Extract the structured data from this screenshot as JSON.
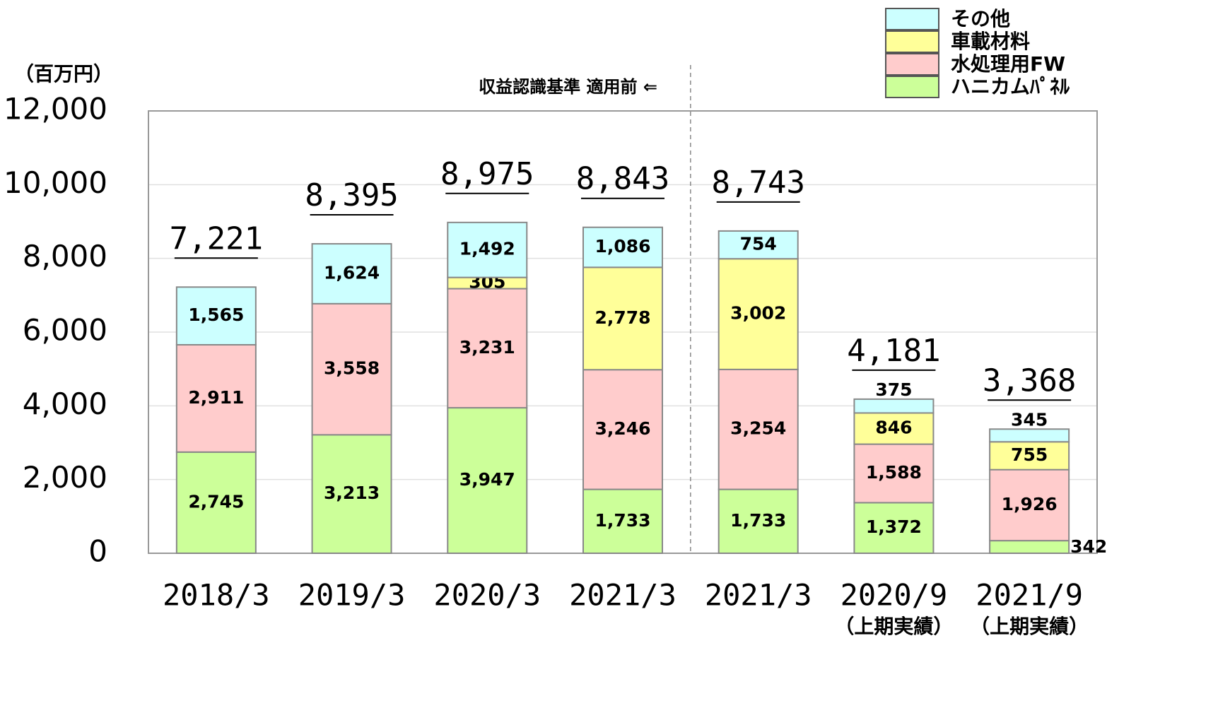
{
  "chart_data": {
    "type": "stacked_bar",
    "y_axis_label": "（百万円）",
    "annotation": "収益認識基準 適用前 ⇐",
    "categories": [
      "2018/3",
      "2019/3",
      "2020/3",
      "2021/3",
      "2021/3",
      "2020/9",
      "2021/9"
    ],
    "category_sublabels": [
      null,
      null,
      null,
      null,
      null,
      "（上期実績）",
      "（上期実績）"
    ],
    "series": [
      {
        "name": "ハニカムﾊﾟﾈﾙ",
        "color": "#ccff99",
        "values": [
          2745,
          3213,
          3947,
          1733,
          1733,
          1372,
          342
        ],
        "value_labels": [
          "2,745",
          "3,213",
          "3,947",
          "1,733",
          "1,733",
          "1,372",
          "342"
        ]
      },
      {
        "name": "水処理用FW",
        "color": "#ffcccc",
        "values": [
          2911,
          3558,
          3231,
          3246,
          3254,
          1588,
          1926
        ],
        "value_labels": [
          "2,911",
          "3,558",
          "3,231",
          "3,246",
          "3,254",
          "1,588",
          "1,926"
        ]
      },
      {
        "name": "車載材料",
        "color": "#ffff99",
        "values": [
          null,
          null,
          305,
          2778,
          3002,
          846,
          755
        ],
        "value_labels": [
          null,
          null,
          "305",
          "2,778",
          "3,002",
          "846",
          "755"
        ]
      },
      {
        "name": "その他",
        "color": "#ccffff",
        "values": [
          1565,
          1624,
          1492,
          1086,
          754,
          375,
          345
        ],
        "value_labels": [
          "1,565",
          "1,624",
          "1,492",
          "1,086",
          "754",
          "375",
          "345"
        ]
      }
    ],
    "totals": [
      7221,
      8395,
      8975,
      8843,
      8743,
      4181,
      3368
    ],
    "total_labels": [
      "7,221",
      "8,395",
      "8,975",
      "8,843",
      "8,743",
      "4,181",
      "3,368"
    ],
    "ylim": [
      0,
      12000
    ],
    "yticks": [
      0,
      {
        "value": 2000,
        "label": "2,000"
      },
      {
        "value": 4000,
        "label": "4,000"
      },
      {
        "value": 6000,
        "label": "6,000"
      },
      {
        "value": 8000,
        "label": "8,000"
      },
      {
        "value": 10000,
        "label": "10,000"
      },
      {
        "value": 12000,
        "label": "12,000"
      }
    ],
    "grid": true,
    "legend": "top-right"
  }
}
